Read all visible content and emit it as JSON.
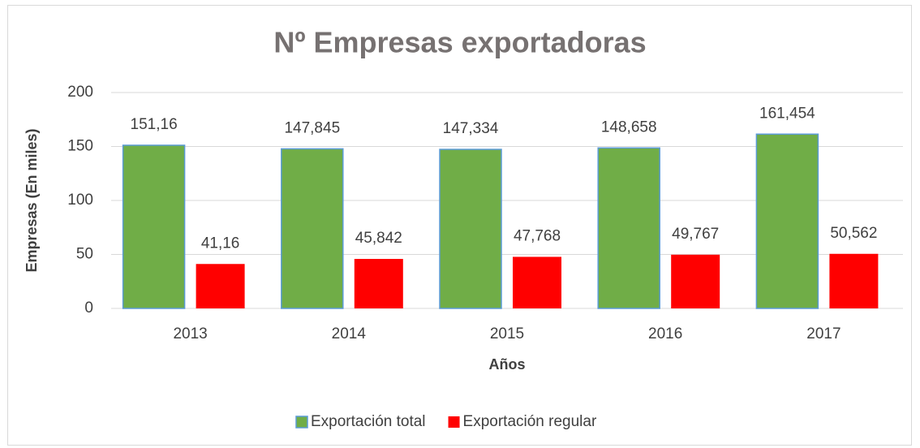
{
  "chart_data": {
    "type": "bar",
    "title": "Nº Empresas exportadoras",
    "x_label": "Años",
    "y_label": "Empresas (En miles)",
    "categories": [
      "2013",
      "2014",
      "2015",
      "2016",
      "2017"
    ],
    "series": [
      {
        "name": "Exportación total",
        "color": "#70ad47",
        "values": [
          151.16,
          147.845,
          147.334,
          148.658,
          161.454
        ],
        "value_labels": [
          "151,16",
          "147,845",
          "147,334",
          "148,658",
          "161,454"
        ]
      },
      {
        "name": "Exportación regular",
        "color": "#ff0000",
        "values": [
          41.16,
          45.842,
          47.768,
          49.767,
          50.562
        ],
        "value_labels": [
          "41,16",
          "45,842",
          "47,768",
          "49,767",
          "50,562"
        ]
      }
    ],
    "ylim": [
      0,
      200
    ],
    "yticks": [
      0,
      50,
      100,
      150,
      200
    ],
    "grid": true,
    "legend": "bottom"
  }
}
